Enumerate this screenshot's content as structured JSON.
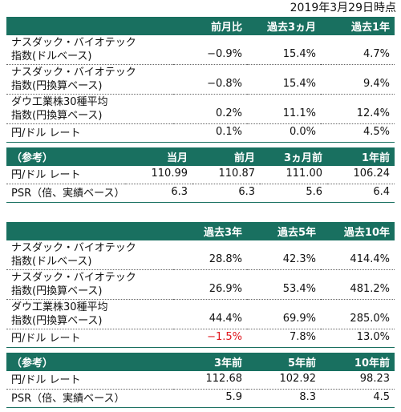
{
  "date_label": "2019年3月29日時点",
  "table1": {
    "header": [
      "",
      "前月比",
      "過去3ヵ月",
      "過去1年"
    ],
    "rows": [
      {
        "label": [
          "ナスダック・バイオテック",
          "指数(ドルベース)"
        ],
        "values": [
          "−0.9%",
          "15.4%",
          "4.7%"
        ]
      },
      {
        "label": [
          "ナスダック・バイオテック",
          "指数(円換算ベース)"
        ],
        "values": [
          "−0.8%",
          "15.4%",
          "9.4%"
        ]
      },
      {
        "label": [
          "ダウ工業株30種平均",
          "指数(円換算ベース)"
        ],
        "values": [
          "0.2%",
          "11.1%",
          "12.4%"
        ]
      },
      {
        "label": [
          "円/ドル レート"
        ],
        "values": [
          "0.1%",
          "0.0%",
          "4.5%"
        ]
      }
    ],
    "ref_header": [
      "（参考）",
      "当月",
      "前月",
      "3ヵ月前",
      "1年前"
    ],
    "ref_rows": [
      {
        "label": "円/ドル レート",
        "values": [
          "110.99",
          "110.87",
          "111.00",
          "106.24"
        ]
      },
      {
        "label": "PSR（倍、実績ベース）",
        "values": [
          "6.3",
          "6.3",
          "5.6",
          "6.4"
        ]
      }
    ]
  },
  "table2": {
    "header": [
      "",
      "過去3年",
      "過去5年",
      "過去10年"
    ],
    "rows": [
      {
        "label": [
          "ナスダック・バイオテック",
          "指数(ドルベース)"
        ],
        "values": [
          "28.8%",
          "42.3%",
          "414.4%"
        ]
      },
      {
        "label": [
          "ナスダック・バイオテック",
          "指数(円換算ベース)"
        ],
        "values": [
          "26.9%",
          "53.4%",
          "481.2%"
        ]
      },
      {
        "label": [
          "ダウ工業株30種平均",
          "指数(円換算ベース)"
        ],
        "values": [
          "44.4%",
          "69.9%",
          "285.0%"
        ]
      },
      {
        "label": [
          "円/ドル レート"
        ],
        "values": [
          "−1.5%",
          "7.8%",
          "13.0%"
        ],
        "negative_index": 0
      }
    ],
    "ref_header": [
      "（参考）",
      "3年前",
      "5年前",
      "10年前"
    ],
    "ref_rows": [
      {
        "label": "円/ドル レート",
        "values": [
          "112.68",
          "102.92",
          "98.23"
        ]
      },
      {
        "label": "PSR（倍、実績ベース）",
        "values": [
          "5.9",
          "8.3",
          "4.5"
        ]
      }
    ]
  },
  "colors": {
    "header_bg": "#197060",
    "header_text": "#ffffff",
    "negative": "#e0151c"
  }
}
